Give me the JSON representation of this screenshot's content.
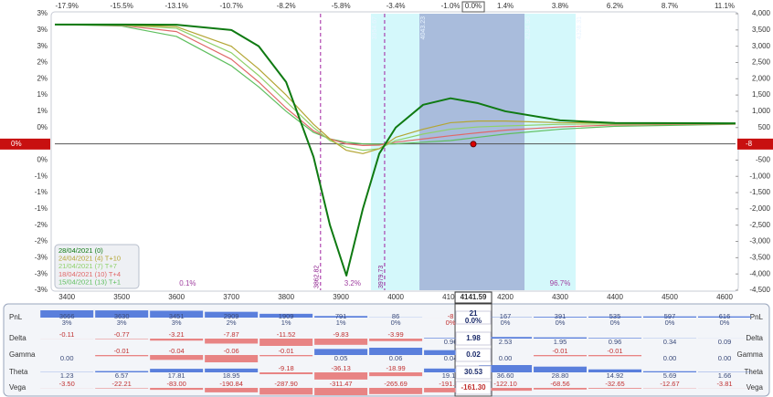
{
  "chart_data": {
    "type": "line",
    "xlim": [
      3378,
      4620
    ],
    "ylim": [
      -4500,
      4000
    ],
    "xticks": [
      3400,
      3500,
      3600,
      3700,
      3800,
      3900,
      4000,
      4100,
      4200,
      4300,
      4400,
      4500,
      4600
    ],
    "top_tick_labels": [
      "-17.9%",
      "-15.5%",
      "-13.1%",
      "-10.7%",
      "-8.2%",
      "-5.8%",
      "-3.4%",
      "-1.0%",
      "1.4%",
      "3.8%",
      "6.2%",
      "8.7%",
      "11.1%"
    ],
    "current_price": 4141.59,
    "current_change": "0.0%",
    "yticks": [
      {
        "value": 4000,
        "label": "4,000"
      },
      {
        "value": 3500,
        "label": "3,500"
      },
      {
        "value": 3000,
        "label": "3,000"
      },
      {
        "value": 2500,
        "label": "2,500"
      },
      {
        "value": 2000,
        "label": "2,000"
      },
      {
        "value": 1500,
        "label": "1,500"
      },
      {
        "value": 1000,
        "label": "1,000"
      },
      500,
      -500,
      {
        "value": -1000,
        "label": "-1,000"
      },
      {
        "value": -1500,
        "label": "-1,500"
      },
      {
        "value": -2000,
        "label": "-2,000"
      },
      {
        "value": -2500,
        "label": "-2,500"
      },
      {
        "value": -3000,
        "label": "-3,000"
      },
      {
        "value": -3500,
        "label": "-3,500"
      },
      {
        "value": -4000,
        "label": "-4,000"
      },
      {
        "value": -4500,
        "label": "-4,500"
      }
    ],
    "left_tick_labels": [
      "3%",
      "3%",
      "3%",
      "2%",
      "2%",
      "1%",
      "1%",
      "0%",
      "0%",
      "-1%",
      "-1%",
      "-1%",
      "-2%",
      "-2%",
      "-3%",
      "-3%",
      "-3%"
    ],
    "current_pnl": -8,
    "current_pnl_pct": "0%",
    "x": [
      3378,
      3500,
      3600,
      3700,
      3750,
      3800,
      3850,
      3880,
      3910,
      3940,
      3970,
      4000,
      4050,
      4100,
      4150,
      4200,
      4300,
      4400,
      4620
    ],
    "series": [
      {
        "name": "28/04/2021 (0)",
        "color": "#0f7a12",
        "values": [
          3666,
          3666,
          3660,
          3500,
          3000,
          1900,
          -400,
          -2500,
          -4050,
          -2000,
          -300,
          500,
          1200,
          1400,
          1250,
          1000,
          720,
          640,
          630
        ]
      },
      {
        "name": "24/04/2021 (4) T+10",
        "color": "#b3a533",
        "values": [
          3666,
          3660,
          3600,
          3000,
          2300,
          1500,
          600,
          150,
          -200,
          -300,
          -150,
          200,
          450,
          650,
          700,
          700,
          650,
          640,
          630
        ]
      },
      {
        "name": "21/04/2021 (7) T+7",
        "color": "#8fd16a",
        "values": [
          3666,
          3650,
          3550,
          2800,
          2100,
          1300,
          500,
          100,
          -100,
          -200,
          -150,
          100,
          300,
          450,
          520,
          550,
          600,
          610,
          620
        ]
      },
      {
        "name": "18/04/2021 (10) T+4",
        "color": "#e06868",
        "values": [
          3666,
          3640,
          3450,
          2600,
          1900,
          1100,
          400,
          150,
          0,
          -50,
          -40,
          50,
          150,
          250,
          340,
          420,
          520,
          580,
          610
        ]
      },
      {
        "name": "15/04/2021 (13) T+1",
        "color": "#5fbf5f",
        "values": [
          3666,
          3620,
          3300,
          2400,
          1750,
          1000,
          350,
          150,
          50,
          0,
          -10,
          0,
          50,
          100,
          200,
          300,
          450,
          540,
          600
        ]
      }
    ],
    "breakevens": [
      3862.82,
      3979.73
    ],
    "bands": [
      [
        3954.67,
        4328.31
      ],
      [
        4043.23,
        4234.96
      ]
    ],
    "zone_probabilities": [
      0.1,
      3.2,
      96.7
    ],
    "zone_probability_labels": [
      "0.1%",
      "3.2%",
      "96.7%"
    ]
  },
  "greeks": {
    "rows": [
      {
        "name": "PnL",
        "values": [
          3666,
          3630,
          3451,
          2909,
          1909,
          791,
          86,
          -8,
          167,
          391,
          535,
          597,
          616
        ],
        "pct_labels": [
          "3%",
          "3%",
          "3%",
          "2%",
          "1%",
          "1%",
          "0%",
          "0%",
          "0%",
          "0%",
          "0%",
          "0%",
          "0%"
        ],
        "current": 21,
        "current_pct": "0.0%"
      },
      {
        "name": "Delta",
        "values": [
          -0.11,
          -0.77,
          -3.21,
          -7.87,
          -11.52,
          -9.83,
          -3.99,
          0.96,
          2.53,
          1.95,
          0.96,
          0.34,
          0.09
        ],
        "current": 1.98
      },
      {
        "name": "Gamma",
        "values": [
          0,
          -0.01,
          -0.04,
          -0.06,
          -0.01,
          0.05,
          0.06,
          0.04,
          0,
          -0.01,
          -0.01,
          0,
          0
        ],
        "value_labels": [
          "0.00",
          "-0.01",
          "-0.04",
          "-0.06",
          "-0.01",
          "0.05",
          "0.06",
          "0.04",
          "0.00",
          "-0.01",
          "-0.01",
          "0.00",
          "0.00"
        ],
        "current": 0.02
      },
      {
        "name": "Theta",
        "values": [
          1.23,
          6.57,
          17.81,
          18.95,
          -9.18,
          -36.13,
          -18.99,
          19.15,
          36.6,
          28.8,
          14.92,
          5.69,
          1.66
        ],
        "value_labels": [
          "1.23",
          "6.57",
          "17.81",
          "18.95",
          "-9.18",
          "-36.13",
          "-18.99",
          "19.15",
          "36.60",
          "28.80",
          "14.92",
          "5.69",
          "1.66"
        ],
        "current": 30.53
      },
      {
        "name": "Vega",
        "values": [
          -3.5,
          -22.21,
          -83,
          -190.84,
          -287.9,
          -311.47,
          -265.69,
          -191.2,
          -122.1,
          -68.56,
          -32.65,
          -12.67,
          -3.81
        ],
        "value_labels": [
          "-3.50",
          "-22.21",
          "-83.00",
          "-190.84",
          "-287.90",
          "-311.47",
          "-265.69",
          "-191.20",
          "-122.10",
          "-68.56",
          "-32.65",
          "-12.67",
          "-3.81"
        ],
        "current": -161.3,
        "current_label": "-161.30"
      }
    ]
  }
}
